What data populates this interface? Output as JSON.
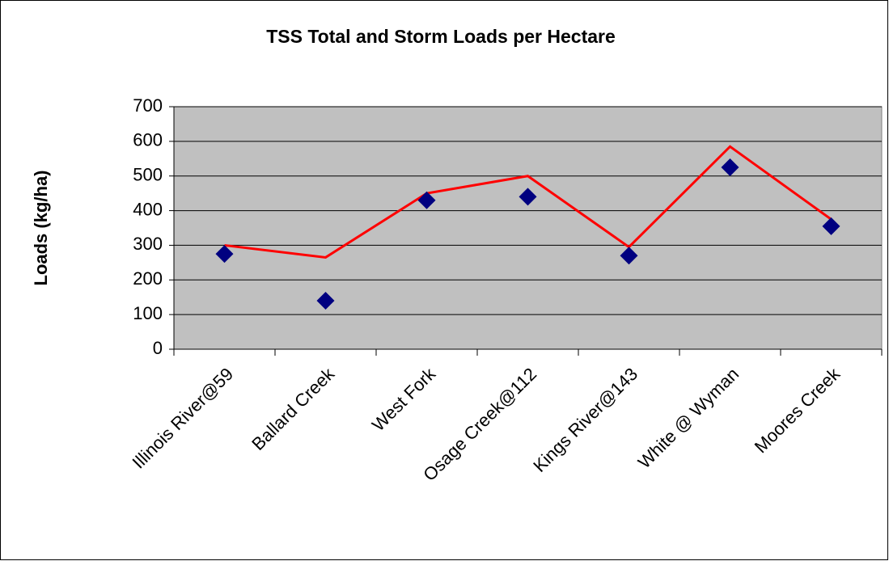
{
  "chart_data": {
    "type": "line",
    "title": "TSS Total and Storm Loads per Hectare",
    "y_label": "Loads (kg/ha)",
    "categories": [
      "Illinois River@59",
      "Ballard Creek",
      "West Fork",
      "Osage Creek@112",
      "Kings River@143",
      "White @ Wyman",
      "Moores Creek"
    ],
    "series": [
      {
        "color": "#ff0000",
        "marker": "none",
        "line": true,
        "values": [
          300,
          265,
          450,
          500,
          295,
          585,
          375
        ]
      },
      {
        "color": "#000080",
        "marker": "diamond",
        "line": false,
        "values": [
          275,
          140,
          430,
          440,
          270,
          525,
          355
        ]
      }
    ],
    "ylim": [
      0,
      700
    ],
    "yticks": [
      0,
      100,
      200,
      300,
      400,
      500,
      600,
      700
    ],
    "grid": true
  }
}
